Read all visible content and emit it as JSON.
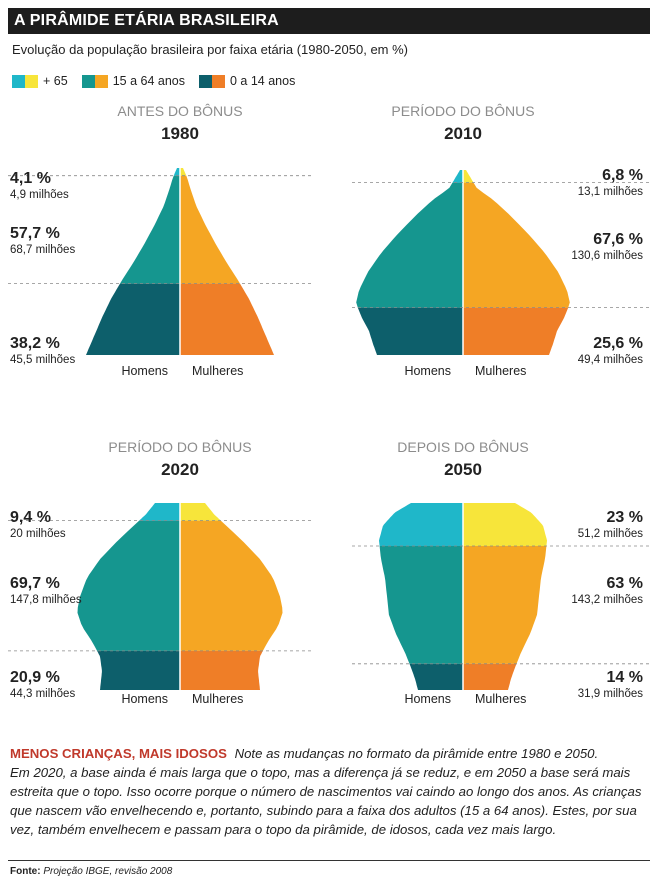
{
  "header": {
    "title": "A PIRÂMIDE ETÁRIA BRASILEIRA",
    "subtitle": "Evolução da população brasileira por faixa etária (1980-2050, em %)"
  },
  "legend": [
    {
      "label": "+ 65",
      "colors": [
        "#1fb7c9",
        "#f7e53a"
      ]
    },
    {
      "label": "15 a 64 anos",
      "colors": [
        "#15968f",
        "#f5a623"
      ]
    },
    {
      "label": "0 a 14 anos",
      "colors": [
        "#0d5f6b",
        "#ef7e27"
      ]
    }
  ],
  "colors": {
    "m65": "#1fb7c9",
    "f65": "#f7e53a",
    "m1564": "#15968f",
    "f1564": "#f5a623",
    "m014": "#0d5f6b",
    "f014": "#ef7e27"
  },
  "chart_data": [
    {
      "type": "area",
      "period": "ANTES DO BÔNUS",
      "year": "1980",
      "male_label": "Homens",
      "female_label": "Mulheres",
      "groups": [
        {
          "group": "+ 65",
          "percent": "4,1 %",
          "population": "4,9 milhões",
          "share": 4.1
        },
        {
          "group": "15 a 64 anos",
          "percent": "57,7 %",
          "population": "68,7 milhões",
          "share": 57.7
        },
        {
          "group": "0 a 14 anos",
          "percent": "38,2 %",
          "population": "45,5 milhões",
          "share": 38.2
        }
      ]
    },
    {
      "type": "area",
      "period": "PERÍODO DO BÔNUS",
      "year": "2010",
      "male_label": "Homens",
      "female_label": "Mulheres",
      "groups": [
        {
          "group": "+ 65",
          "percent": "6,8 %",
          "population": "13,1 milhões",
          "share": 6.8
        },
        {
          "group": "15 a 64 anos",
          "percent": "67,6 %",
          "population": "130,6 milhões",
          "share": 67.6
        },
        {
          "group": "0 a 14 anos",
          "percent": "25,6 %",
          "population": "49,4 milhões",
          "share": 25.6
        }
      ]
    },
    {
      "type": "area",
      "period": "PERÍODO DO BÔNUS",
      "year": "2020",
      "male_label": "Homens",
      "female_label": "Mulheres",
      "groups": [
        {
          "group": "+ 65",
          "percent": "9,4 %",
          "population": "20 milhões",
          "share": 9.4
        },
        {
          "group": "15 a 64 anos",
          "percent": "69,7 %",
          "population": "147,8 milhões",
          "share": 69.7
        },
        {
          "group": "0 a 14 anos",
          "percent": "20,9 %",
          "population": "44,3 milhões",
          "share": 20.9
        }
      ]
    },
    {
      "type": "area",
      "period": "DEPOIS DO BÔNUS",
      "year": "2050",
      "male_label": "Homens",
      "female_label": "Mulheres",
      "groups": [
        {
          "group": "+ 65",
          "percent": "23 %",
          "population": "51,2 milhões",
          "share": 23
        },
        {
          "group": "15 a 64 anos",
          "percent": "63 %",
          "population": "143,2 milhões",
          "share": 63
        },
        {
          "group": "0 a 14 anos",
          "percent": "14 %",
          "population": "31,9 milhões",
          "share": 14
        }
      ]
    }
  ],
  "caption": {
    "lead": "Menos crianças, mais idosos",
    "line1": "Note as mudanças no formato da pirâmide entre 1980 e 2050.",
    "body": "Em 2020, a base ainda é mais larga que o topo, mas a diferença já se reduz, e em 2050 a base será mais estreita que o topo. Isso ocorre porque o número de nascimentos vai caindo ao longo dos anos. As crianças que nascem vão envelhecendo e, portanto, subindo para a faixa dos adultos (15 a 64 anos). Estes, por sua vez, também envelhecem e passam para o topo da pirâmide, de idosos, cada vez mais largo."
  },
  "source": {
    "label": "Fonte:",
    "text": "Projeção IBGE, revisão 2008"
  }
}
